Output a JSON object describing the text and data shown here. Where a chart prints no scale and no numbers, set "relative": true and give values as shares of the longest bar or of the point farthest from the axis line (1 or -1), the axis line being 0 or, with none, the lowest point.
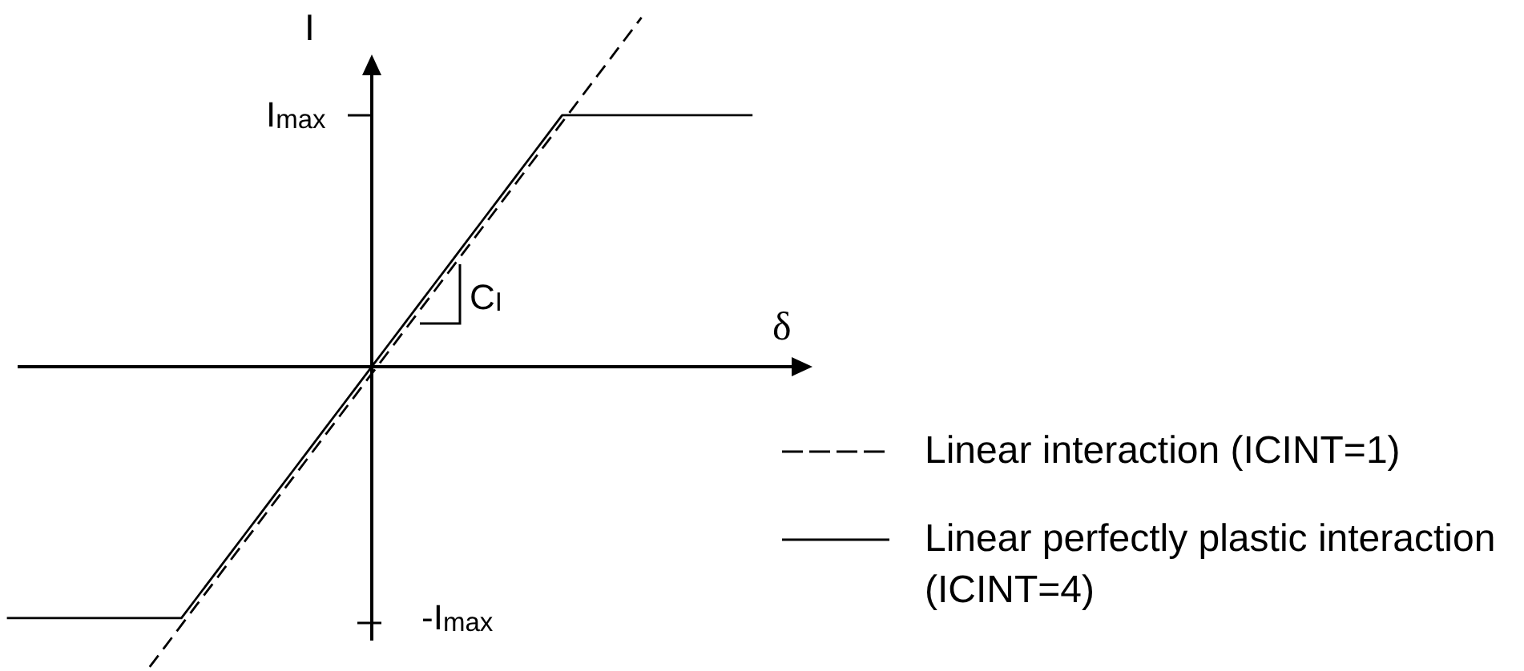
{
  "chart_data": {
    "type": "line",
    "xlabel": "δ",
    "ylabel": "I",
    "relative": true,
    "categories": [
      null,
      null,
      null,
      null,
      null,
      null,
      null,
      null,
      null,
      null,
      null,
      null,
      null,
      null,
      null,
      null,
      null,
      null,
      null,
      null,
      null,
      null,
      null,
      null,
      null,
      null,
      null,
      null,
      null,
      null,
      null,
      null,
      null,
      null,
      null,
      null,
      null,
      null,
      null,
      null,
      null,
      null,
      null,
      null,
      null,
      null,
      null,
      null
    ],
    "series": [
      {
        "name": "Linear interaction (ICINT=1)",
        "color": "#000000",
        "line_style": "dashed",
        "values": [
          null,
          null,
          null,
          null,
          null,
          null,
          null,
          null,
          null,
          -0.86,
          -0.8,
          -0.74,
          -0.68,
          -0.62,
          -0.56,
          -0.5,
          -0.44,
          -0.38,
          -0.32,
          -0.26,
          -0.2,
          -0.14,
          -0.08,
          -0.02,
          0.04,
          0.1,
          0.16,
          0.22,
          0.28,
          0.34,
          0.4,
          0.46,
          0.52,
          0.58,
          0.64,
          0.7,
          0.76,
          0.82,
          0.88,
          0.94,
          1.0,
          null,
          null,
          null,
          null,
          null,
          null,
          null
        ]
      },
      {
        "name": "Linear perfectly plastic interaction (ICINT=4)",
        "color": "#000000",
        "line_style": "solid",
        "values": [
          -0.72,
          -0.72,
          -0.72,
          -0.72,
          -0.72,
          -0.72,
          -0.72,
          -0.72,
          -0.72,
          -0.72,
          -0.72,
          -0.72,
          -0.66,
          -0.6,
          -0.54,
          -0.48,
          -0.42,
          -0.36,
          -0.3,
          -0.24,
          -0.18,
          -0.12,
          -0.06,
          0,
          0.06,
          0.12,
          0.18,
          0.24,
          0.3,
          0.36,
          0.42,
          0.48,
          0.54,
          0.6,
          0.66,
          0.72,
          0.72,
          0.72,
          0.72,
          0.72,
          0.72,
          0.72,
          0.72,
          0.72,
          0.72,
          0.72,
          0.72,
          0.72
        ]
      }
    ],
    "legend": "bottom right",
    "annotations": [
      "I$_{max}$",
      "C$_{I}$",
      "-I$_{max}$"
    ]
  }
}
